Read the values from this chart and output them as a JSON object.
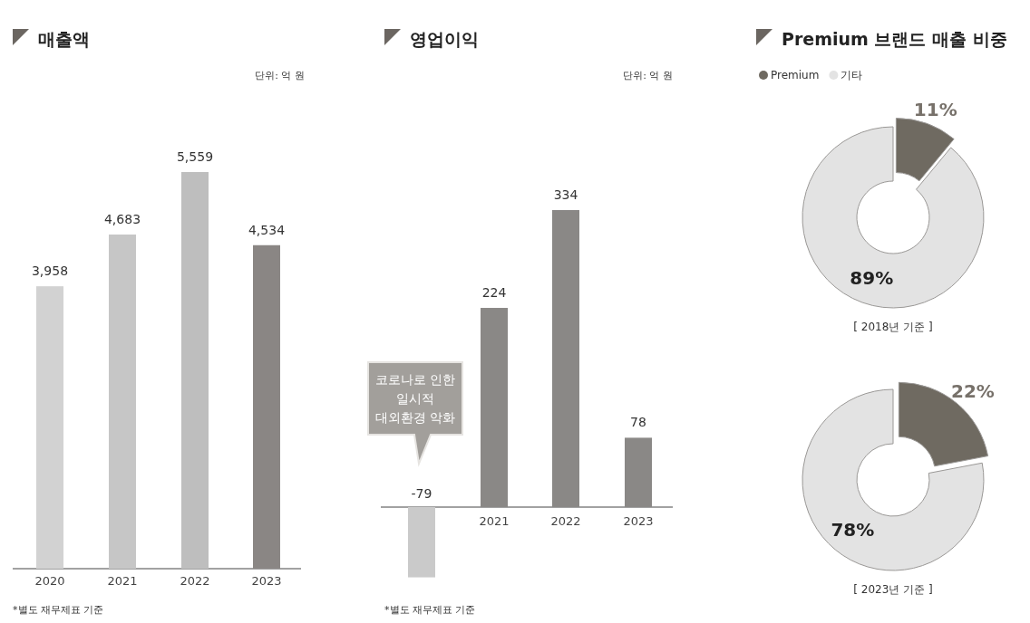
{
  "chart_data": [
    {
      "type": "bar",
      "title": "매출액",
      "categories": [
        "2020",
        "2021",
        "2022",
        "2023"
      ],
      "values": [
        3958,
        4683,
        5559,
        4534
      ],
      "value_labels": [
        "3,958",
        "4,683",
        "5,559",
        "4,534"
      ],
      "colors": [
        "#d2d2d2",
        "#c6c6c6",
        "#bebebe",
        "#8a8684"
      ],
      "annotations": [
        "단위: 억 원",
        "*별도 재무제표 기준"
      ]
    },
    {
      "type": "bar",
      "title": "영업이익",
      "categories": [
        null,
        "2021",
        "2022",
        "2023"
      ],
      "values": [
        -79,
        224,
        334,
        78
      ],
      "colors": [
        "#cacaca",
        "#8a8886",
        "#8a8886",
        "#8a8886"
      ],
      "data_labels": true,
      "annotations": [
        "단위: 억 원",
        "*별도 재무제표 기준",
        "코로나로 인한\n일시적\n대외환경 악화"
      ]
    },
    {
      "type": "donut",
      "title": "Premium 브랜드 매출 비중",
      "subtitle": "[ 2018년 기준 ]",
      "categories": [
        "Premium",
        "기타"
      ],
      "values": [
        11,
        89
      ],
      "colors": [
        "#6f6a61",
        "#e3e3e3"
      ],
      "value_labels": [
        "11%",
        "89%"
      ],
      "legend": "top left"
    },
    {
      "type": "donut",
      "subtitle": "[ 2023년 기준 ]",
      "values": [
        22,
        78
      ],
      "colors": [
        "#6f6a61",
        "#e3e3e3"
      ],
      "value_labels": [
        "22%",
        "78%"
      ]
    }
  ]
}
